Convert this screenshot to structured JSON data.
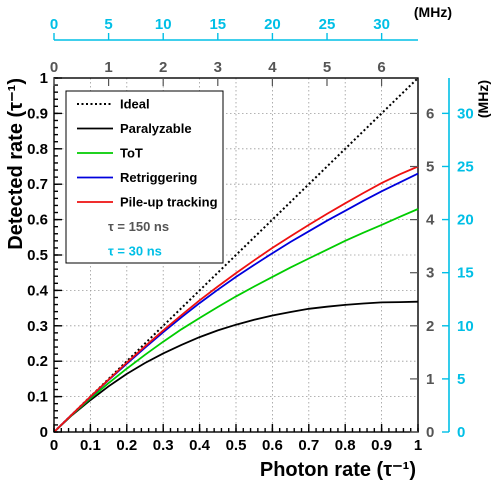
{
  "chart_data": {
    "type": "line",
    "xlabel": "Photon rate (τ⁻¹)",
    "ylabel": "Detected rate (τ⁻¹)",
    "xlim": [
      0,
      1
    ],
    "ylim": [
      0,
      1
    ],
    "grid": true,
    "legend_position": "top-left",
    "x_ticks": [
      "0",
      "0.1",
      "0.2",
      "0.3",
      "0.4",
      "0.5",
      "0.6",
      "0.7",
      "0.8",
      "0.9",
      "1"
    ],
    "y_ticks": [
      "0",
      "0.1",
      "0.2",
      "0.3",
      "0.4",
      "0.5",
      "0.6",
      "0.7",
      "0.8",
      "0.9",
      "1"
    ],
    "top_axis": {
      "unit": "(MHz)",
      "color": "#00bfe6",
      "range": [
        0,
        33.33
      ],
      "ticks": [
        "0",
        "5",
        "10",
        "15",
        "20",
        "25",
        "30"
      ],
      "tick_values": [
        0,
        5,
        10,
        15,
        20,
        25,
        30
      ]
    },
    "top_axis_gray": {
      "color": "#555555",
      "range": [
        0,
        6.667
      ],
      "ticks": [
        "0",
        "1",
        "2",
        "3",
        "4",
        "5",
        "6"
      ],
      "tick_values": [
        0,
        1,
        2,
        3,
        4,
        5,
        6
      ]
    },
    "right_axis_gray": {
      "color": "#555555",
      "range": [
        0,
        6.667
      ],
      "ticks": [
        "0",
        "1",
        "2",
        "3",
        "4",
        "5",
        "6"
      ],
      "tick_values": [
        0,
        1,
        2,
        3,
        4,
        5,
        6
      ]
    },
    "right_axis": {
      "unit": "(MHz)",
      "color": "#00bfe6",
      "range": [
        0,
        33.33
      ],
      "ticks": [
        "0",
        "5",
        "10",
        "15",
        "20",
        "25",
        "30"
      ],
      "tick_values": [
        0,
        5,
        10,
        15,
        20,
        25,
        30
      ]
    },
    "x": [
      0,
      0.05,
      0.1,
      0.15,
      0.2,
      0.25,
      0.3,
      0.35,
      0.4,
      0.45,
      0.5,
      0.55,
      0.6,
      0.65,
      0.7,
      0.75,
      0.8,
      0.85,
      0.9,
      0.95,
      1.0
    ],
    "series": [
      {
        "name": "Ideal",
        "color": "#000000",
        "dash": true,
        "values": [
          0,
          0.05,
          0.1,
          0.15,
          0.2,
          0.25,
          0.3,
          0.35,
          0.4,
          0.45,
          0.5,
          0.55,
          0.6,
          0.65,
          0.7,
          0.75,
          0.8,
          0.85,
          0.9,
          0.95,
          1.0
        ]
      },
      {
        "name": "Paralyzable",
        "color": "#000000",
        "dash": false,
        "values": [
          0,
          0.048,
          0.09,
          0.129,
          0.164,
          0.195,
          0.222,
          0.246,
          0.268,
          0.287,
          0.303,
          0.317,
          0.329,
          0.339,
          0.348,
          0.354,
          0.359,
          0.363,
          0.366,
          0.367,
          0.368
        ]
      },
      {
        "name": "ToT",
        "color": "#00cc00",
        "dash": false,
        "values": [
          0,
          0.049,
          0.095,
          0.138,
          0.179,
          0.218,
          0.255,
          0.29,
          0.322,
          0.353,
          0.383,
          0.411,
          0.438,
          0.465,
          0.49,
          0.515,
          0.54,
          0.563,
          0.585,
          0.608,
          0.63
        ]
      },
      {
        "name": "Retriggering",
        "color": "#0000dd",
        "dash": false,
        "values": [
          0,
          0.05,
          0.099,
          0.147,
          0.193,
          0.238,
          0.282,
          0.324,
          0.364,
          0.402,
          0.438,
          0.472,
          0.505,
          0.537,
          0.567,
          0.597,
          0.625,
          0.653,
          0.68,
          0.705,
          0.73
        ]
      },
      {
        "name": "Pile-up tracking",
        "color": "#ee1111",
        "dash": false,
        "values": [
          0,
          0.05,
          0.1,
          0.148,
          0.196,
          0.242,
          0.287,
          0.33,
          0.372,
          0.411,
          0.449,
          0.485,
          0.52,
          0.553,
          0.585,
          0.616,
          0.646,
          0.675,
          0.703,
          0.728,
          0.75
        ]
      }
    ],
    "legend_notes": [
      {
        "text": "τ = 150 ns",
        "color": "#555555"
      },
      {
        "text": "τ = 30 ns",
        "color": "#00bfe6"
      }
    ]
  }
}
